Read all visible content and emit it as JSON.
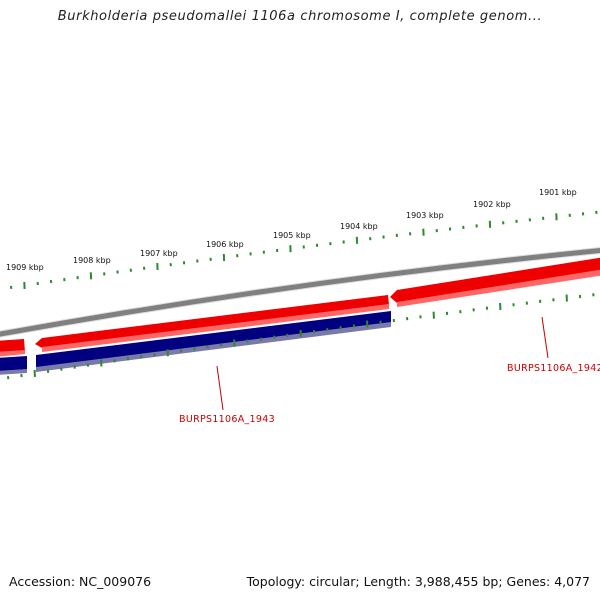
{
  "title": "Burkholderia pseudomallei 1106a chromosome I, complete genom...",
  "footer": {
    "accession": "Accession: NC_009076",
    "summary": "Topology: circular; Length: 3,988,455 bp; Genes: 4,077"
  },
  "colors": {
    "backbone": "#808080",
    "forward_gene": "#ee0000",
    "forward_gene_shade": "#ff6666",
    "reverse_gene": "#000080",
    "reverse_gene_shade": "#7a7aaa",
    "ticks": "#2b8a2b",
    "gene_label": "#cc0000"
  },
  "ruler": {
    "labels": [
      "1909 kbp",
      "1908 kbp",
      "1907 kbp",
      "1906 kbp",
      "1905 kbp",
      "1904 kbp",
      "1903 kbp",
      "1902 kbp",
      "1901 kbp"
    ]
  },
  "genes": [
    {
      "name": "BURPS1106A_1943",
      "strand": "reverse"
    },
    {
      "name": "BURPS1106A_1942",
      "strand": "forward"
    }
  ]
}
